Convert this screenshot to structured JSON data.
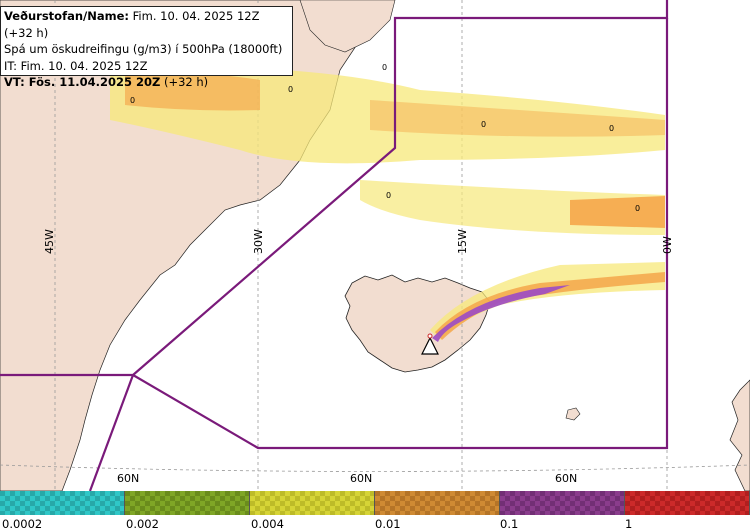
{
  "info": {
    "line1_label": "Veðurstofan/Name:",
    "line1_value": "Fim. 10. 04. 2025 12Z (+32 h)",
    "line2": "Spá um öskudreifingu (g/m3) í 500hPa (18000ft)",
    "line3": "IT: Fim. 10. 04. 2025 12Z",
    "line4_label": "VT: Fös. 11.04.2025 20Z",
    "line4_value": "(+32 h)"
  },
  "map": {
    "longitude_labels": [
      "45W",
      "30W",
      "15W",
      "0W"
    ],
    "latitude_labels": [
      "60N",
      "60N",
      "60N"
    ],
    "zero_labels": [
      "0",
      "0",
      "0",
      "0",
      "0",
      "0",
      "0"
    ],
    "colors": {
      "land": "#f2ddd0",
      "sea": "#ffffff",
      "boundary": "#7a1a7a",
      "grid": "#9a9a9a",
      "ash_low": "#f7e87a",
      "ash_mid": "#f5a64a",
      "ash_high": "#a050c0"
    },
    "volcano_icon": "warning-triangle-icon"
  },
  "legend": {
    "labels": [
      "0.0002",
      "0.002",
      "0.004",
      "0.01",
      "0.1",
      "1"
    ],
    "colors": [
      "#2fc7c7",
      "#7fa626",
      "#d6d436",
      "#cf8a33",
      "#8a3c8c",
      "#cc2a2a"
    ]
  }
}
